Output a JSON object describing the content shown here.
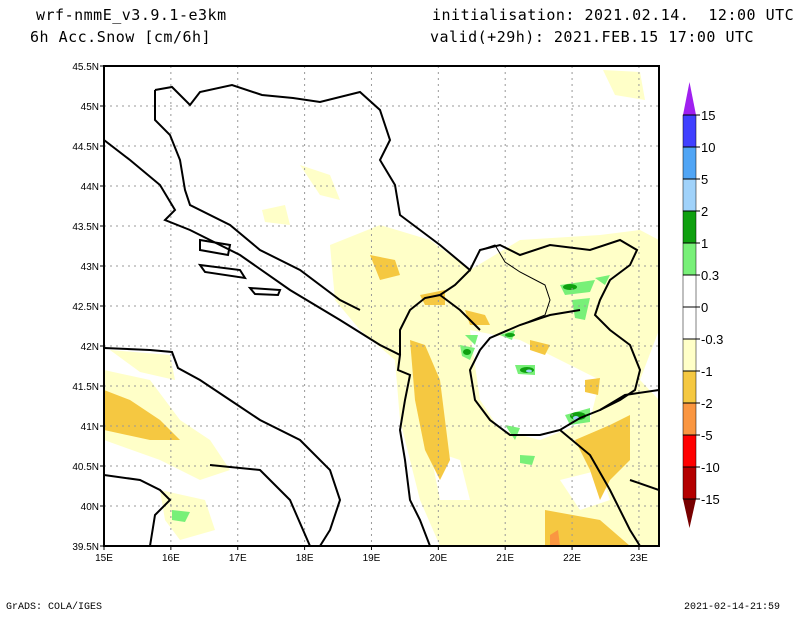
{
  "header": {
    "model": "wrf-nmmE_v3.9.1-e3km",
    "variable": "6h Acc.Snow [cm/6h]",
    "initialisation": "initialisation: 2021.02.14.  12:00 UTC",
    "valid": "valid(+29h): 2021.FEB.15 17:00 UTC"
  },
  "footer": {
    "credit": "GrADS: COLA/IGES",
    "timestamp": "2021-02-14-21:59"
  },
  "map": {
    "lon_range": [
      15,
      23.3
    ],
    "lat_range": [
      39.5,
      45.5
    ],
    "lon_ticks": [
      "15E",
      "16E",
      "17E",
      "18E",
      "19E",
      "20E",
      "21E",
      "22E",
      "23E"
    ],
    "lat_ticks": [
      "39.5N",
      "40N",
      "40.5N",
      "41N",
      "41.5N",
      "42N",
      "42.5N",
      "43N",
      "43.5N",
      "44N",
      "44.5N",
      "45N",
      "45.5N"
    ]
  },
  "colorbar": {
    "labels": [
      "15",
      "10",
      "5",
      "2",
      "1",
      "0.3",
      "0",
      "-0.3",
      "-1",
      "-2",
      "-5",
      "-10",
      "-15"
    ],
    "colors": [
      "#a020f0",
      "#4040ff",
      "#50a5f5",
      "#a0d2fa",
      "#0fa00f",
      "#78f078",
      "#ffffff",
      "#ffffff",
      "#ffffc8",
      "#f5c841",
      "#fa9641",
      "#ff0000",
      "#b40000",
      "#780000"
    ]
  }
}
